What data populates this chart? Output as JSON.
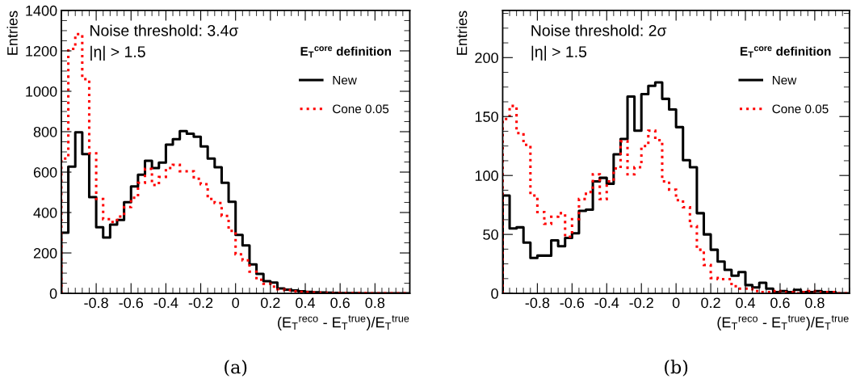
{
  "chart_data": [
    {
      "type": "histogram",
      "ylabel": "Entries",
      "xlabel": "(E$_{T}$$^{reco}$ - E$_{T}$$^{true}$)/E$_{T}$$^{true}$",
      "legend_title": "E$_{T}$$^{core}$ definition",
      "annotations": [
        "Noise threshold: 3.4σ",
        "|η| > 1.5",
        "(a)"
      ],
      "bins": [
        -1,
        -0.96,
        -0.92,
        -0.88,
        -0.84,
        -0.8,
        -0.76,
        -0.72,
        -0.68,
        -0.64,
        -0.6,
        -0.56,
        -0.52,
        -0.48,
        -0.44,
        -0.4,
        -0.36,
        -0.32,
        -0.28,
        -0.24,
        -0.2,
        -0.16,
        -0.12,
        -0.08,
        -0.04,
        0,
        0.04,
        0.08,
        0.12,
        0.16,
        0.2,
        0.24,
        0.28,
        0.32,
        0.36,
        0.4,
        0.44,
        0.48,
        0.52,
        0.56,
        0.6,
        0.64,
        0.68,
        0.72,
        0.76,
        0.8,
        0.84,
        0.88,
        0.92,
        0.96,
        1
      ],
      "series": [
        {
          "name": "New",
          "color": "#000000",
          "line_style": "solid",
          "values": [
            300,
            627,
            797,
            689,
            476,
            327,
            276,
            340,
            363,
            451,
            529,
            587,
            656,
            620,
            647,
            736,
            763,
            803,
            790,
            775,
            727,
            667,
            624,
            547,
            453,
            289,
            237,
            143,
            96,
            60,
            53,
            24,
            18,
            14,
            10,
            7,
            5,
            4,
            3,
            2,
            1,
            1,
            1,
            0,
            0,
            0,
            0,
            0,
            0,
            0
          ]
        },
        {
          "name": "Cone 0.05",
          "color": "#ff0000",
          "line_style": "dotted",
          "values": [
            667,
            1210,
            1283,
            1060,
            693,
            467,
            367,
            353,
            380,
            427,
            473,
            547,
            616,
            536,
            576,
            620,
            636,
            604,
            604,
            567,
            540,
            467,
            447,
            383,
            309,
            193,
            163,
            107,
            67,
            47,
            33,
            20,
            15,
            10,
            7,
            5,
            4,
            3,
            2,
            2,
            1,
            1,
            1,
            1,
            0,
            0,
            0,
            0,
            0,
            0
          ]
        }
      ],
      "xlim": [
        -1,
        1
      ],
      "xticks": [
        -0.8,
        -0.6,
        -0.4,
        -0.2,
        0,
        0.2,
        0.4,
        0.6,
        0.8
      ],
      "ylim": [
        0,
        1400
      ],
      "yticks": [
        0,
        200,
        400,
        600,
        800,
        1000,
        1200,
        1400
      ],
      "legend": "right"
    },
    {
      "type": "histogram",
      "ylabel": "Entries",
      "xlabel": "(E$_{T}$$^{reco}$ - E$_{T}$$^{true}$)/E$_{T}$$^{true}$",
      "legend_title": "E$_{T}$$^{core}$ definition",
      "annotations": [
        "Noise threshold: 2σ",
        "|η| > 1.5",
        "(b)"
      ],
      "bins": [
        -1,
        -0.96,
        -0.92,
        -0.88,
        -0.84,
        -0.8,
        -0.76,
        -0.72,
        -0.68,
        -0.64,
        -0.6,
        -0.56,
        -0.52,
        -0.48,
        -0.44,
        -0.4,
        -0.36,
        -0.32,
        -0.28,
        -0.24,
        -0.2,
        -0.16,
        -0.12,
        -0.08,
        -0.04,
        0,
        0.04,
        0.08,
        0.12,
        0.16,
        0.2,
        0.24,
        0.28,
        0.32,
        0.36,
        0.4,
        0.44,
        0.48,
        0.52,
        0.56,
        0.6,
        0.64,
        0.68,
        0.72,
        0.76,
        0.8,
        0.84,
        0.88,
        0.92,
        0.96,
        1
      ],
      "series": [
        {
          "name": "New",
          "color": "#000000",
          "line_style": "solid",
          "values": [
            83,
            55,
            56,
            43,
            30,
            32,
            32,
            45,
            40,
            47,
            51,
            70,
            71,
            95,
            98,
            93,
            118,
            131,
            167,
            138,
            169,
            176,
            179,
            165,
            156,
            141,
            113,
            107,
            68,
            50,
            37,
            27,
            20,
            15,
            18,
            7,
            5,
            9,
            4,
            1,
            2,
            1,
            3,
            1,
            1,
            2,
            1,
            1,
            0,
            0
          ]
        },
        {
          "name": "Cone 0.05",
          "color": "#ff0000",
          "line_style": "dotted",
          "values": [
            148,
            159,
            136,
            126,
            83,
            69,
            59,
            65,
            68,
            48,
            63,
            80,
            86,
            101,
            80,
            95,
            106,
            129,
            101,
            107,
            125,
            138,
            130,
            95,
            88,
            79,
            73,
            57,
            37,
            24,
            13,
            12,
            12,
            6,
            4,
            4,
            2,
            1,
            1,
            2,
            1,
            1,
            0,
            1,
            2,
            1,
            1,
            1,
            0,
            0
          ]
        }
      ],
      "xlim": [
        -1,
        1
      ],
      "xticks": [
        -0.8,
        -0.6,
        -0.4,
        -0.2,
        0,
        0.2,
        0.4,
        0.6,
        0.8
      ],
      "ylim": [
        0,
        240
      ],
      "yticks": [
        0,
        50,
        100,
        150,
        200
      ],
      "legend": "right"
    }
  ]
}
